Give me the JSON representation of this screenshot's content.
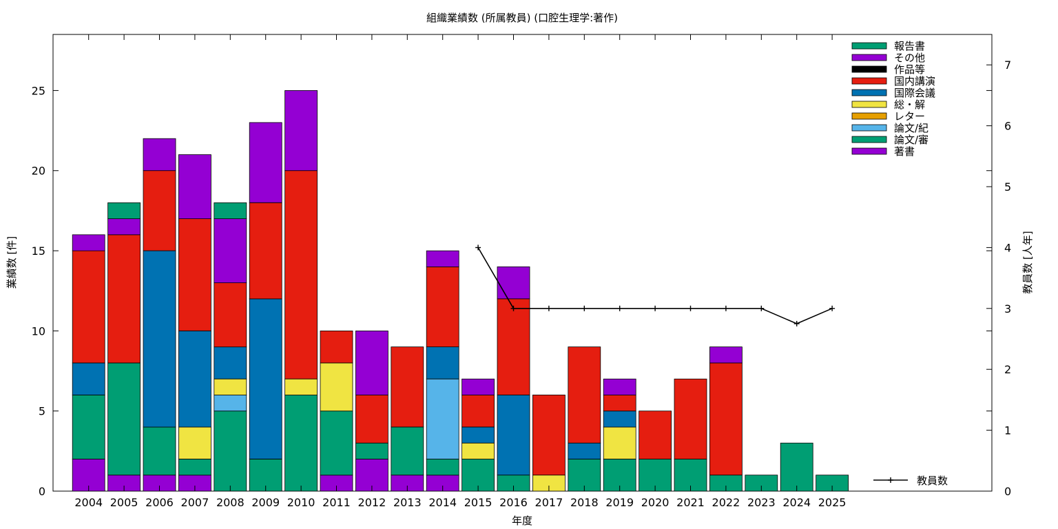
{
  "chart_data": {
    "type": "bar",
    "stacked": true,
    "title": "組織業績数 (所属教員) (口腔生理学:著作)",
    "xlabel": "年度",
    "ylabel": "業績数 [件]",
    "y2label": "教員数 [人年]",
    "ylim": [
      0,
      28.5
    ],
    "y2lim": [
      0,
      7.5
    ],
    "yticks": [
      0,
      5,
      10,
      15,
      20,
      25
    ],
    "y2ticks": [
      0,
      1,
      2,
      3,
      4,
      5,
      6,
      7
    ],
    "grid": false,
    "legend_position": "top-right",
    "categories": [
      "2004",
      "2005",
      "2006",
      "2007",
      "2008",
      "2009",
      "2010",
      "2011",
      "2012",
      "2013",
      "2014",
      "2015",
      "2016",
      "2017",
      "2018",
      "2019",
      "2020",
      "2021",
      "2022",
      "2023",
      "2024",
      "2025"
    ],
    "series": [
      {
        "name": "著書",
        "color": "#9400d3",
        "values": [
          2,
          1,
          1,
          1,
          0,
          0,
          0,
          1,
          2,
          1,
          1,
          0,
          0,
          0,
          0,
          0,
          0,
          0,
          0,
          0,
          0,
          0
        ]
      },
      {
        "name": "論文/審",
        "color": "#009e73",
        "values": [
          4,
          7,
          3,
          1,
          5,
          2,
          6,
          4,
          1,
          3,
          1,
          2,
          1,
          0,
          2,
          2,
          2,
          2,
          1,
          1,
          3,
          1
        ]
      },
      {
        "name": "論文/紀",
        "color": "#56b4e9",
        "values": [
          0,
          0,
          0,
          0,
          1,
          0,
          0,
          0,
          0,
          0,
          5,
          0,
          0,
          0,
          0,
          0,
          0,
          0,
          0,
          0,
          0,
          0
        ]
      },
      {
        "name": "レター",
        "color": "#e69f00",
        "values": [
          0,
          0,
          0,
          0,
          0,
          0,
          0,
          0,
          0,
          0,
          0,
          0,
          0,
          0,
          0,
          0,
          0,
          0,
          0,
          0,
          0,
          0
        ]
      },
      {
        "name": "総・解",
        "color": "#f0e442",
        "values": [
          0,
          0,
          0,
          2,
          1,
          0,
          1,
          3,
          0,
          0,
          0,
          1,
          0,
          1,
          0,
          2,
          0,
          0,
          0,
          0,
          0,
          0
        ]
      },
      {
        "name": "国際会議",
        "color": "#0072b2",
        "values": [
          2,
          0,
          11,
          6,
          2,
          10,
          0,
          0,
          0,
          0,
          2,
          1,
          5,
          0,
          1,
          1,
          0,
          0,
          0,
          0,
          0,
          0
        ]
      },
      {
        "name": "国内講演",
        "color": "#e51e10",
        "values": [
          7,
          8,
          5,
          7,
          4,
          6,
          13,
          2,
          3,
          5,
          5,
          2,
          6,
          5,
          6,
          1,
          3,
          5,
          7,
          0,
          0,
          0
        ]
      },
      {
        "name": "作品等",
        "color": "#000000",
        "values": [
          0,
          0,
          0,
          0,
          0,
          0,
          0,
          0,
          0,
          0,
          0,
          0,
          0,
          0,
          0,
          0,
          0,
          0,
          0,
          0,
          0,
          0
        ]
      },
      {
        "name": "その他",
        "color": "#9400d3",
        "values": [
          1,
          1,
          2,
          4,
          4,
          5,
          5,
          0,
          4,
          0,
          1,
          1,
          2,
          0,
          0,
          1,
          0,
          0,
          1,
          0,
          0,
          0
        ]
      },
      {
        "name": "報告書",
        "color": "#009e73",
        "values": [
          0,
          1,
          0,
          0,
          1,
          0,
          0,
          0,
          0,
          0,
          0,
          0,
          0,
          0,
          0,
          0,
          0,
          0,
          0,
          0,
          0,
          0
        ]
      }
    ],
    "line_series": {
      "name": "教員数",
      "axis": "y2",
      "color": "#000000",
      "x": [
        "2015",
        "2016",
        "2017",
        "2018",
        "2019",
        "2020",
        "2021",
        "2022",
        "2023",
        "2024",
        "2025"
      ],
      "values": [
        4,
        3,
        3,
        3,
        3,
        3,
        3,
        3,
        3,
        2.75,
        3
      ]
    }
  }
}
